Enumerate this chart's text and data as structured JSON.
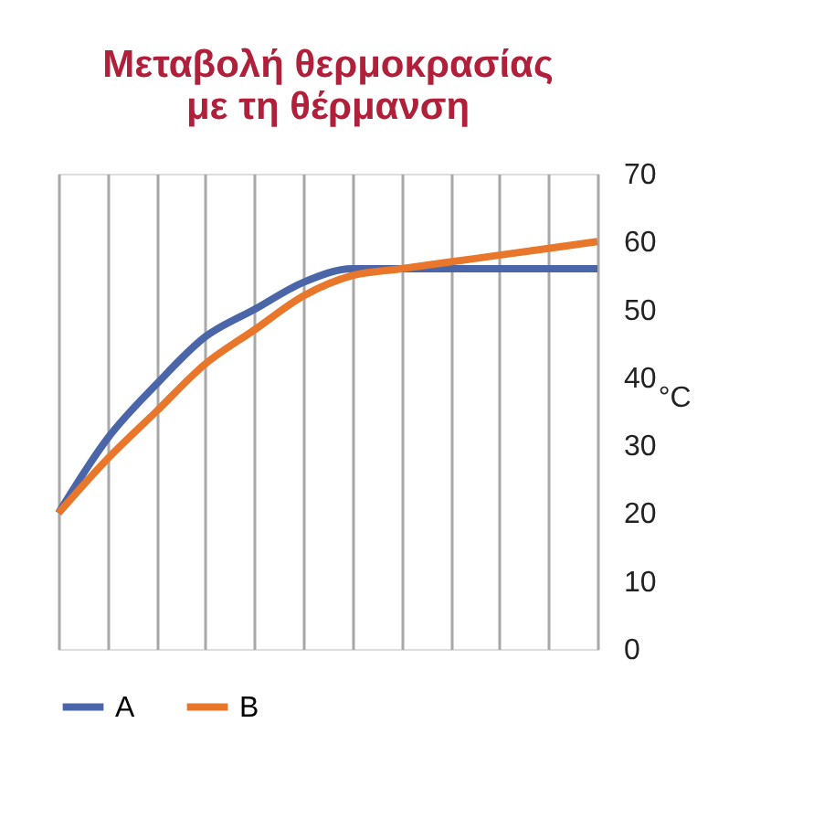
{
  "chart_data": {
    "type": "line",
    "title": "Μεταβολή θερμοκρασίας\nμε τη θέρμανση",
    "ylabel": "°C",
    "categories": [
      null,
      null,
      null,
      null,
      null,
      null,
      null,
      null,
      null,
      null,
      null,
      null
    ],
    "series": [
      {
        "name": "A",
        "color": "#4a66a8",
        "values": [
          20,
          31,
          39,
          46,
          50,
          54,
          56,
          56,
          56,
          56,
          56,
          56
        ]
      },
      {
        "name": "B",
        "color": "#e8762b",
        "values": [
          20,
          28,
          35,
          42,
          47,
          52,
          55,
          56,
          57,
          58,
          59,
          60
        ]
      }
    ],
    "ylim": [
      0,
      70
    ],
    "yticks": [
      0,
      10,
      20,
      30,
      40,
      50,
      60,
      70
    ],
    "grid": "x",
    "legend": "bottom",
    "tick_labels": "y",
    "marker": "none",
    "line_style": "solid"
  }
}
